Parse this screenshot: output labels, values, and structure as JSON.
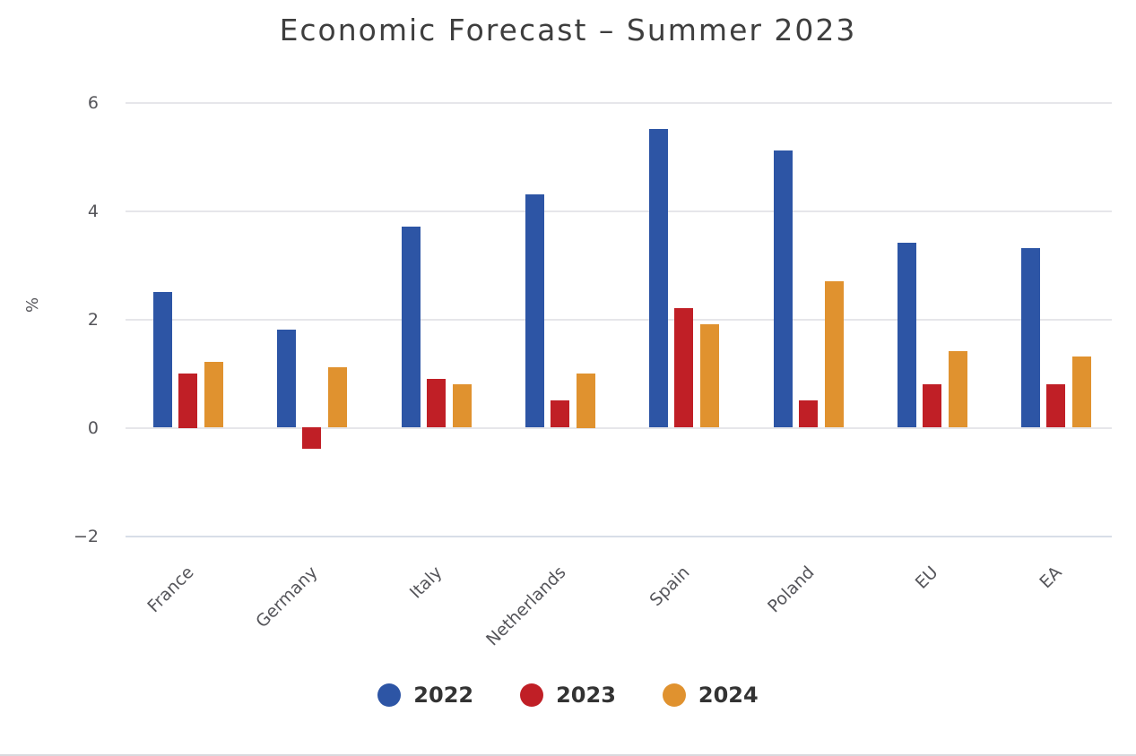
{
  "title": "Economic Forecast – Summer 2023",
  "chart_data": {
    "type": "bar",
    "title": "Economic Forecast – Summer 2023",
    "categories": [
      "France",
      "Germany",
      "Italy",
      "Netherlands",
      "Spain",
      "Poland",
      "EU",
      "EA"
    ],
    "series": [
      {
        "name": "2022",
        "color": "#2D55A5",
        "values": [
          2.5,
          1.8,
          3.7,
          4.3,
          5.5,
          5.1,
          3.4,
          3.3
        ]
      },
      {
        "name": "2023",
        "color": "#C01F26",
        "values": [
          1.0,
          -0.4,
          0.9,
          0.5,
          2.2,
          0.5,
          0.8,
          0.8
        ]
      },
      {
        "name": "2024",
        "color": "#E0922F",
        "values": [
          1.2,
          1.1,
          0.8,
          1.0,
          1.9,
          2.7,
          1.4,
          1.3
        ]
      }
    ],
    "xlabel": "",
    "ylabel": "%",
    "ylim": [
      -2,
      6
    ],
    "yticks": [
      6,
      4,
      2,
      0,
      -2
    ],
    "ytick_labels": [
      "6",
      "4",
      "2",
      "0",
      "−2"
    ],
    "grid": true,
    "legend_position": "bottom"
  }
}
